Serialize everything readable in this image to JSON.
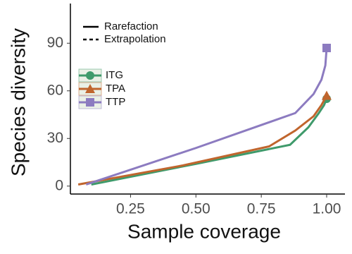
{
  "chart_data": {
    "type": "line",
    "x_label": "Sample coverage",
    "y_label": "Species diversity",
    "linetype_legend": [
      "Rarefaction",
      "Extrapolation"
    ],
    "xlim": [
      0.02,
      1.07
    ],
    "ylim": [
      -5,
      115
    ],
    "xticks": [
      0.25,
      {
        "value": 0.5,
        "label": "0.50"
      },
      0.75,
      {
        "value": 1,
        "label": "1.00"
      }
    ],
    "yticks": [
      0,
      30,
      60,
      90
    ],
    "series": [
      {
        "name": "ITG",
        "color": "#3f9a6b",
        "marker": "circle",
        "x": [
          0.1,
          0.5,
          0.86,
          0.93,
          0.97,
          0.99,
          1.0
        ],
        "values": [
          1,
          14,
          26,
          37,
          46,
          51,
          55
        ]
      },
      {
        "name": "TPA",
        "color": "#c0652d",
        "marker": "triangle",
        "x": [
          0.05,
          0.45,
          0.78,
          0.88,
          0.95,
          0.98,
          1.0
        ],
        "values": [
          1,
          13,
          25,
          35,
          44,
          51,
          57
        ]
      },
      {
        "name": "TTP",
        "color": "#8c7bc0",
        "marker": "square",
        "x": [
          0.08,
          0.5,
          0.88,
          0.95,
          0.98,
          0.995,
          1.0
        ],
        "values": [
          1,
          24,
          46,
          58,
          67,
          76,
          87
        ]
      }
    ]
  }
}
